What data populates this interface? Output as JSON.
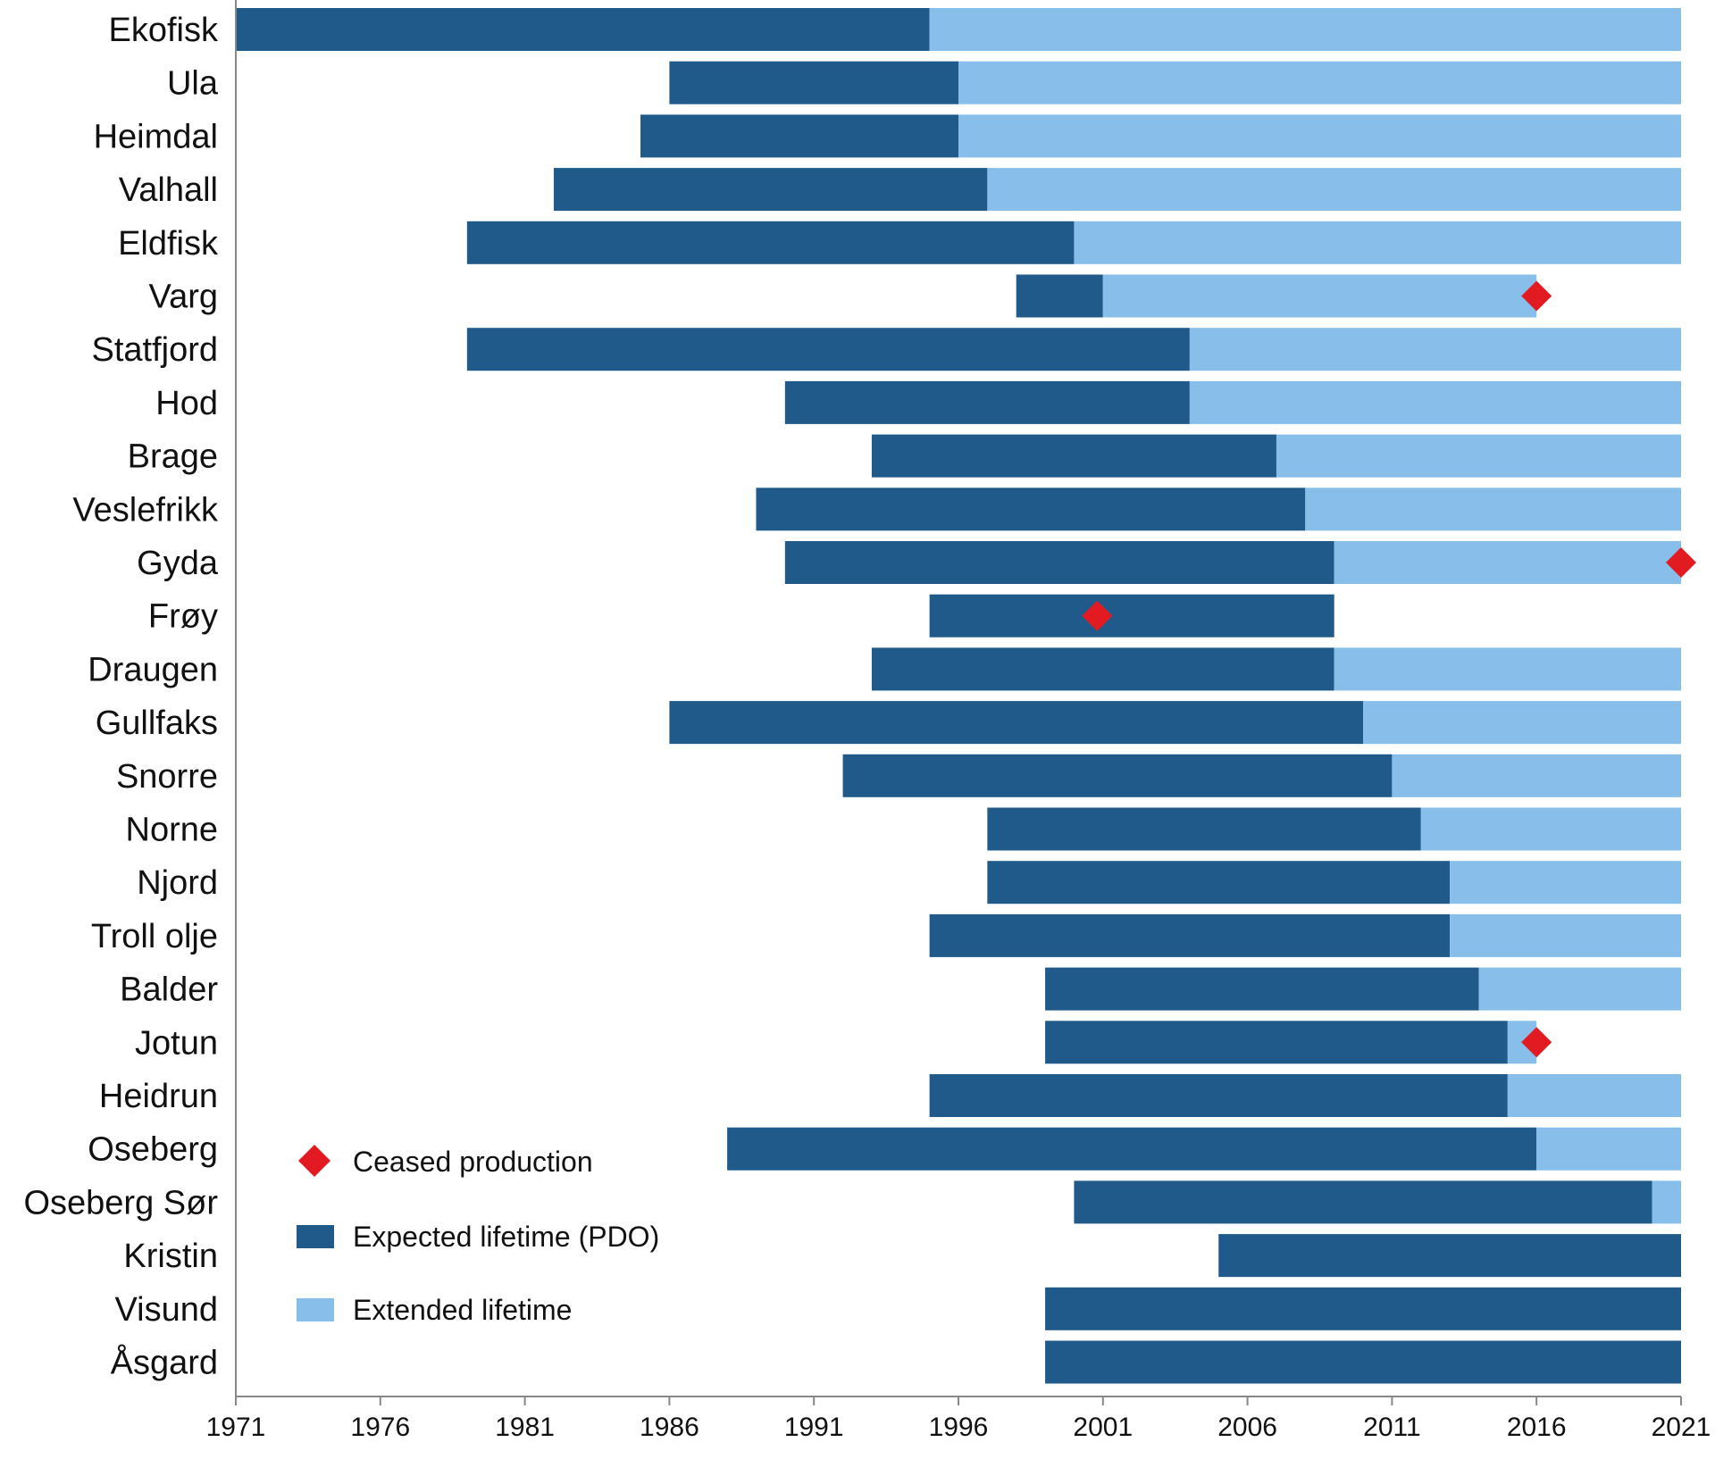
{
  "chart_data": {
    "type": "bar",
    "orientation": "horizontal",
    "stacked": true,
    "title": "",
    "xlabel": "",
    "ylabel": "",
    "xlim": [
      1971,
      2021
    ],
    "x_ticks": [
      1971,
      1976,
      1981,
      1986,
      1991,
      1996,
      2001,
      2006,
      2011,
      2016,
      2021
    ],
    "grid": false,
    "legend_position": "bottom-left inside plot",
    "colors": {
      "expected": "#1f5a8b",
      "extended": "#87bfea",
      "ceased": "#e21b23",
      "axis": "#888888"
    },
    "legend": {
      "ceased": "Ceased production",
      "expected": "Expected lifetime (PDO)",
      "extended": "Extended lifetime"
    },
    "fields": [
      {
        "name": "Ekofisk",
        "start": 1971.0,
        "expected_end": 1995.0,
        "extended_end": 2021.0,
        "ceased": null
      },
      {
        "name": "Ula",
        "start": 1986.0,
        "expected_end": 1996.0,
        "extended_end": 2021.0,
        "ceased": null
      },
      {
        "name": "Heimdal",
        "start": 1985.0,
        "expected_end": 1996.0,
        "extended_end": 2021.0,
        "ceased": null
      },
      {
        "name": "Valhall",
        "start": 1982.0,
        "expected_end": 1997.0,
        "extended_end": 2021.0,
        "ceased": null
      },
      {
        "name": "Eldfisk",
        "start": 1979.0,
        "expected_end": 2000.0,
        "extended_end": 2021.0,
        "ceased": null
      },
      {
        "name": "Varg",
        "start": 1998.0,
        "expected_end": 2001.0,
        "extended_end": 2016.0,
        "ceased": 2016.0
      },
      {
        "name": "Statfjord",
        "start": 1979.0,
        "expected_end": 2004.0,
        "extended_end": 2021.0,
        "ceased": null
      },
      {
        "name": "Hod",
        "start": 1990.0,
        "expected_end": 2004.0,
        "extended_end": 2021.0,
        "ceased": null
      },
      {
        "name": "Brage",
        "start": 1993.0,
        "expected_end": 2007.0,
        "extended_end": 2021.0,
        "ceased": null
      },
      {
        "name": "Veslefrikk",
        "start": 1989.0,
        "expected_end": 2008.0,
        "extended_end": 2021.0,
        "ceased": null
      },
      {
        "name": "Gyda",
        "start": 1990.0,
        "expected_end": 2009.0,
        "extended_end": 2021.0,
        "ceased": 2021.0
      },
      {
        "name": "Frøy",
        "start": 1995.0,
        "expected_end": 2009.0,
        "extended_end": null,
        "ceased": 2000.8
      },
      {
        "name": "Draugen",
        "start": 1993.0,
        "expected_end": 2009.0,
        "extended_end": 2021.0,
        "ceased": null
      },
      {
        "name": "Gullfaks",
        "start": 1986.0,
        "expected_end": 2010.0,
        "extended_end": 2021.0,
        "ceased": null
      },
      {
        "name": "Snorre",
        "start": 1992.0,
        "expected_end": 2011.0,
        "extended_end": 2021.0,
        "ceased": null
      },
      {
        "name": "Norne",
        "start": 1997.0,
        "expected_end": 2012.0,
        "extended_end": 2021.0,
        "ceased": null
      },
      {
        "name": "Njord",
        "start": 1997.0,
        "expected_end": 2013.0,
        "extended_end": 2021.0,
        "ceased": null
      },
      {
        "name": "Troll olje",
        "start": 1995.0,
        "expected_end": 2013.0,
        "extended_end": 2021.0,
        "ceased": null
      },
      {
        "name": "Balder",
        "start": 1999.0,
        "expected_end": 2014.0,
        "extended_end": 2021.0,
        "ceased": null
      },
      {
        "name": "Jotun",
        "start": 1999.0,
        "expected_end": 2015.0,
        "extended_end": 2016.0,
        "ceased": 2016.0
      },
      {
        "name": "Heidrun",
        "start": 1995.0,
        "expected_end": 2015.0,
        "extended_end": 2021.0,
        "ceased": null
      },
      {
        "name": "Oseberg",
        "start": 1988.0,
        "expected_end": 2016.0,
        "extended_end": 2021.0,
        "ceased": null
      },
      {
        "name": "Oseberg Sør",
        "start": 2000.0,
        "expected_end": 2020.0,
        "extended_end": 2021.0,
        "ceased": null
      },
      {
        "name": "Kristin",
        "start": 2005.0,
        "expected_end": 2021.0,
        "extended_end": null,
        "ceased": null
      },
      {
        "name": "Visund",
        "start": 1999.0,
        "expected_end": 2021.0,
        "extended_end": null,
        "ceased": null
      },
      {
        "name": "Åsgard",
        "start": 1999.0,
        "expected_end": 2021.0,
        "extended_end": null,
        "ceased": null
      }
    ]
  }
}
